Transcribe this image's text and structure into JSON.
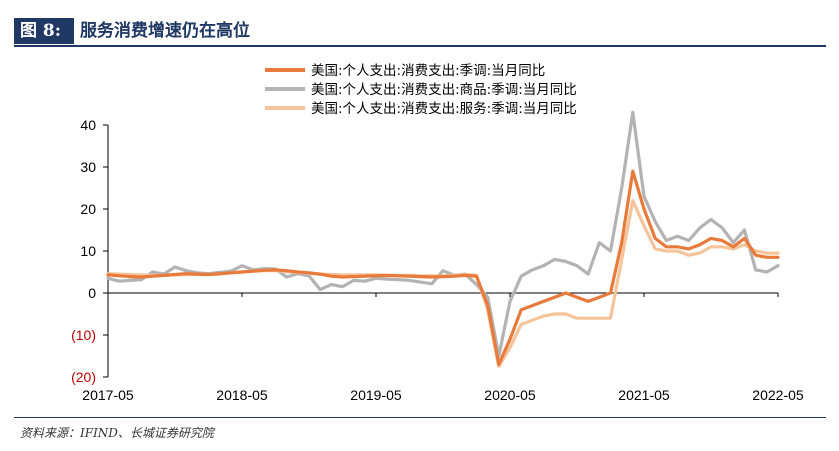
{
  "header": {
    "figure_label": "图 8:",
    "figure_title": "服务消费增速仍在高位"
  },
  "footer": {
    "source": "资料来源：IFIND、长城证券研究院"
  },
  "chart_data": {
    "type": "line",
    "title": "服务消费增速仍在高位",
    "xlabel": "",
    "ylabel": "",
    "ylim": [
      -20,
      40
    ],
    "yticks": [
      40,
      30,
      20,
      10,
      0,
      -10,
      -20
    ],
    "ytick_labels": [
      "40",
      "30",
      "20",
      "10",
      "0",
      "(10)",
      "(20)"
    ],
    "negative_color": "#c00000",
    "x_tick_labels": [
      "2017-05",
      "2018-05",
      "2019-05",
      "2020-05",
      "2021-05",
      "2022-05"
    ],
    "x": [
      "2017-05",
      "2017-06",
      "2017-07",
      "2017-08",
      "2017-09",
      "2017-10",
      "2017-11",
      "2017-12",
      "2018-01",
      "2018-02",
      "2018-03",
      "2018-04",
      "2018-05",
      "2018-06",
      "2018-07",
      "2018-08",
      "2018-09",
      "2018-10",
      "2018-11",
      "2018-12",
      "2019-01",
      "2019-02",
      "2019-03",
      "2019-04",
      "2019-05",
      "2019-06",
      "2019-07",
      "2019-08",
      "2019-09",
      "2019-10",
      "2019-11",
      "2019-12",
      "2020-01",
      "2020-02",
      "2020-03",
      "2020-04",
      "2020-05",
      "2020-06",
      "2020-07",
      "2020-08",
      "2020-09",
      "2020-10",
      "2020-11",
      "2020-12",
      "2021-01",
      "2021-02",
      "2021-03",
      "2021-04",
      "2021-05",
      "2021-06",
      "2021-07",
      "2021-08",
      "2021-09",
      "2021-10",
      "2021-11",
      "2021-12",
      "2022-01",
      "2022-02",
      "2022-03",
      "2022-04",
      "2022-05"
    ],
    "legend_position": "top",
    "grid": false,
    "series": [
      {
        "name": "美国:个人支出:消费支出:季调:当月同比",
        "color": "#e87a3c",
        "width": 3.2,
        "values": [
          4.3,
          4.1,
          3.9,
          3.8,
          4.0,
          4.2,
          4.4,
          4.6,
          4.5,
          4.4,
          4.6,
          4.8,
          5.0,
          5.2,
          5.4,
          5.5,
          5.3,
          5.0,
          4.8,
          4.5,
          4.0,
          3.8,
          3.9,
          4.0,
          4.1,
          4.2,
          4.1,
          4.0,
          3.9,
          3.8,
          3.9,
          4.0,
          4.2,
          4.0,
          -3.0,
          -17.0,
          -11.0,
          -4.0,
          -3.0,
          -2.0,
          -1.0,
          0.0,
          -1.0,
          -2.0,
          -1.0,
          0.0,
          12.0,
          29.0,
          20.0,
          13.0,
          11.0,
          11.0,
          10.5,
          11.5,
          13.0,
          12.5,
          11.0,
          13.0,
          9.0,
          8.5,
          8.5
        ]
      },
      {
        "name": "美国:个人支出:消费支出:商品:季调:当月同比",
        "color": "#b3b3b3",
        "width": 3.2,
        "values": [
          3.5,
          2.8,
          3.0,
          3.2,
          5.0,
          4.5,
          6.2,
          5.3,
          4.8,
          4.6,
          4.9,
          5.2,
          6.5,
          5.5,
          5.8,
          5.7,
          3.8,
          4.6,
          4.1,
          0.8,
          2.0,
          1.5,
          3.0,
          2.8,
          3.5,
          3.3,
          3.2,
          3.0,
          2.6,
          2.2,
          5.3,
          4.2,
          4.5,
          2.0,
          -1.0,
          -15.0,
          -2.0,
          4.0,
          5.5,
          6.5,
          8.0,
          7.5,
          6.5,
          4.5,
          12.0,
          10.0,
          25.0,
          43.0,
          23.0,
          17.0,
          12.5,
          13.5,
          12.5,
          15.5,
          17.5,
          15.5,
          12.0,
          15.0,
          5.5,
          5.0,
          6.5
        ]
      },
      {
        "name": "美国:个人支出:消费支出:服务:季调:当月同比",
        "color": "#f5c49a",
        "width": 3.2,
        "values": [
          4.6,
          4.5,
          4.4,
          4.3,
          4.2,
          4.2,
          4.3,
          4.4,
          4.4,
          4.4,
          4.5,
          4.8,
          5.0,
          5.2,
          5.3,
          5.3,
          5.1,
          4.9,
          4.7,
          4.5,
          4.4,
          4.3,
          4.3,
          4.3,
          4.3,
          4.2,
          4.2,
          4.2,
          4.1,
          4.1,
          4.1,
          4.2,
          4.4,
          4.2,
          -4.0,
          -17.5,
          -13.0,
          -7.5,
          -6.5,
          -5.5,
          -5.0,
          -5.0,
          -6.0,
          -6.0,
          -6.0,
          -6.0,
          8.0,
          22.0,
          16.0,
          10.5,
          10.0,
          10.0,
          9.0,
          9.5,
          11.0,
          11.0,
          10.5,
          11.5,
          10.0,
          9.5,
          9.5
        ]
      }
    ]
  }
}
